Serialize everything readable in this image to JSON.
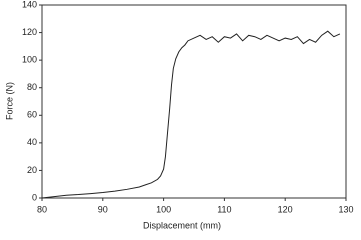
{
  "chart_data": {
    "type": "line",
    "x_label": "Displacement (mm)",
    "y_label": "Force (N)",
    "x": [
      80,
      82,
      84,
      86,
      88,
      90,
      92,
      94,
      96,
      97,
      98,
      99,
      99.5,
      100,
      100.3,
      100.6,
      101,
      101.3,
      101.6,
      102,
      102.5,
      103,
      103.5,
      104,
      105,
      106,
      107,
      108,
      109,
      110,
      111,
      112,
      113,
      114,
      115,
      116,
      117,
      118,
      119,
      120,
      121,
      122,
      123,
      124,
      125,
      126,
      127,
      128,
      129
    ],
    "series": [
      {
        "color": "#222222",
        "values": [
          0,
          1,
          2,
          2.5,
          3.2,
          4,
          5,
          6.3,
          8,
          9.5,
          11,
          13.5,
          16,
          21,
          30,
          45,
          65,
          82,
          94,
          101,
          106,
          109,
          111,
          114,
          116,
          118,
          115,
          117,
          113,
          117,
          116,
          119,
          114,
          118,
          117,
          115,
          118,
          116,
          114,
          116,
          115,
          117,
          112,
          115,
          113,
          118,
          121,
          117,
          119
        ]
      }
    ],
    "xlim": [
      80,
      130
    ],
    "xticks": [
      80,
      90,
      100,
      110,
      120,
      130
    ],
    "ylim": [
      0,
      140
    ],
    "yticks": [
      0,
      20,
      40,
      60,
      80,
      100,
      120,
      140
    ],
    "grid": false
  }
}
